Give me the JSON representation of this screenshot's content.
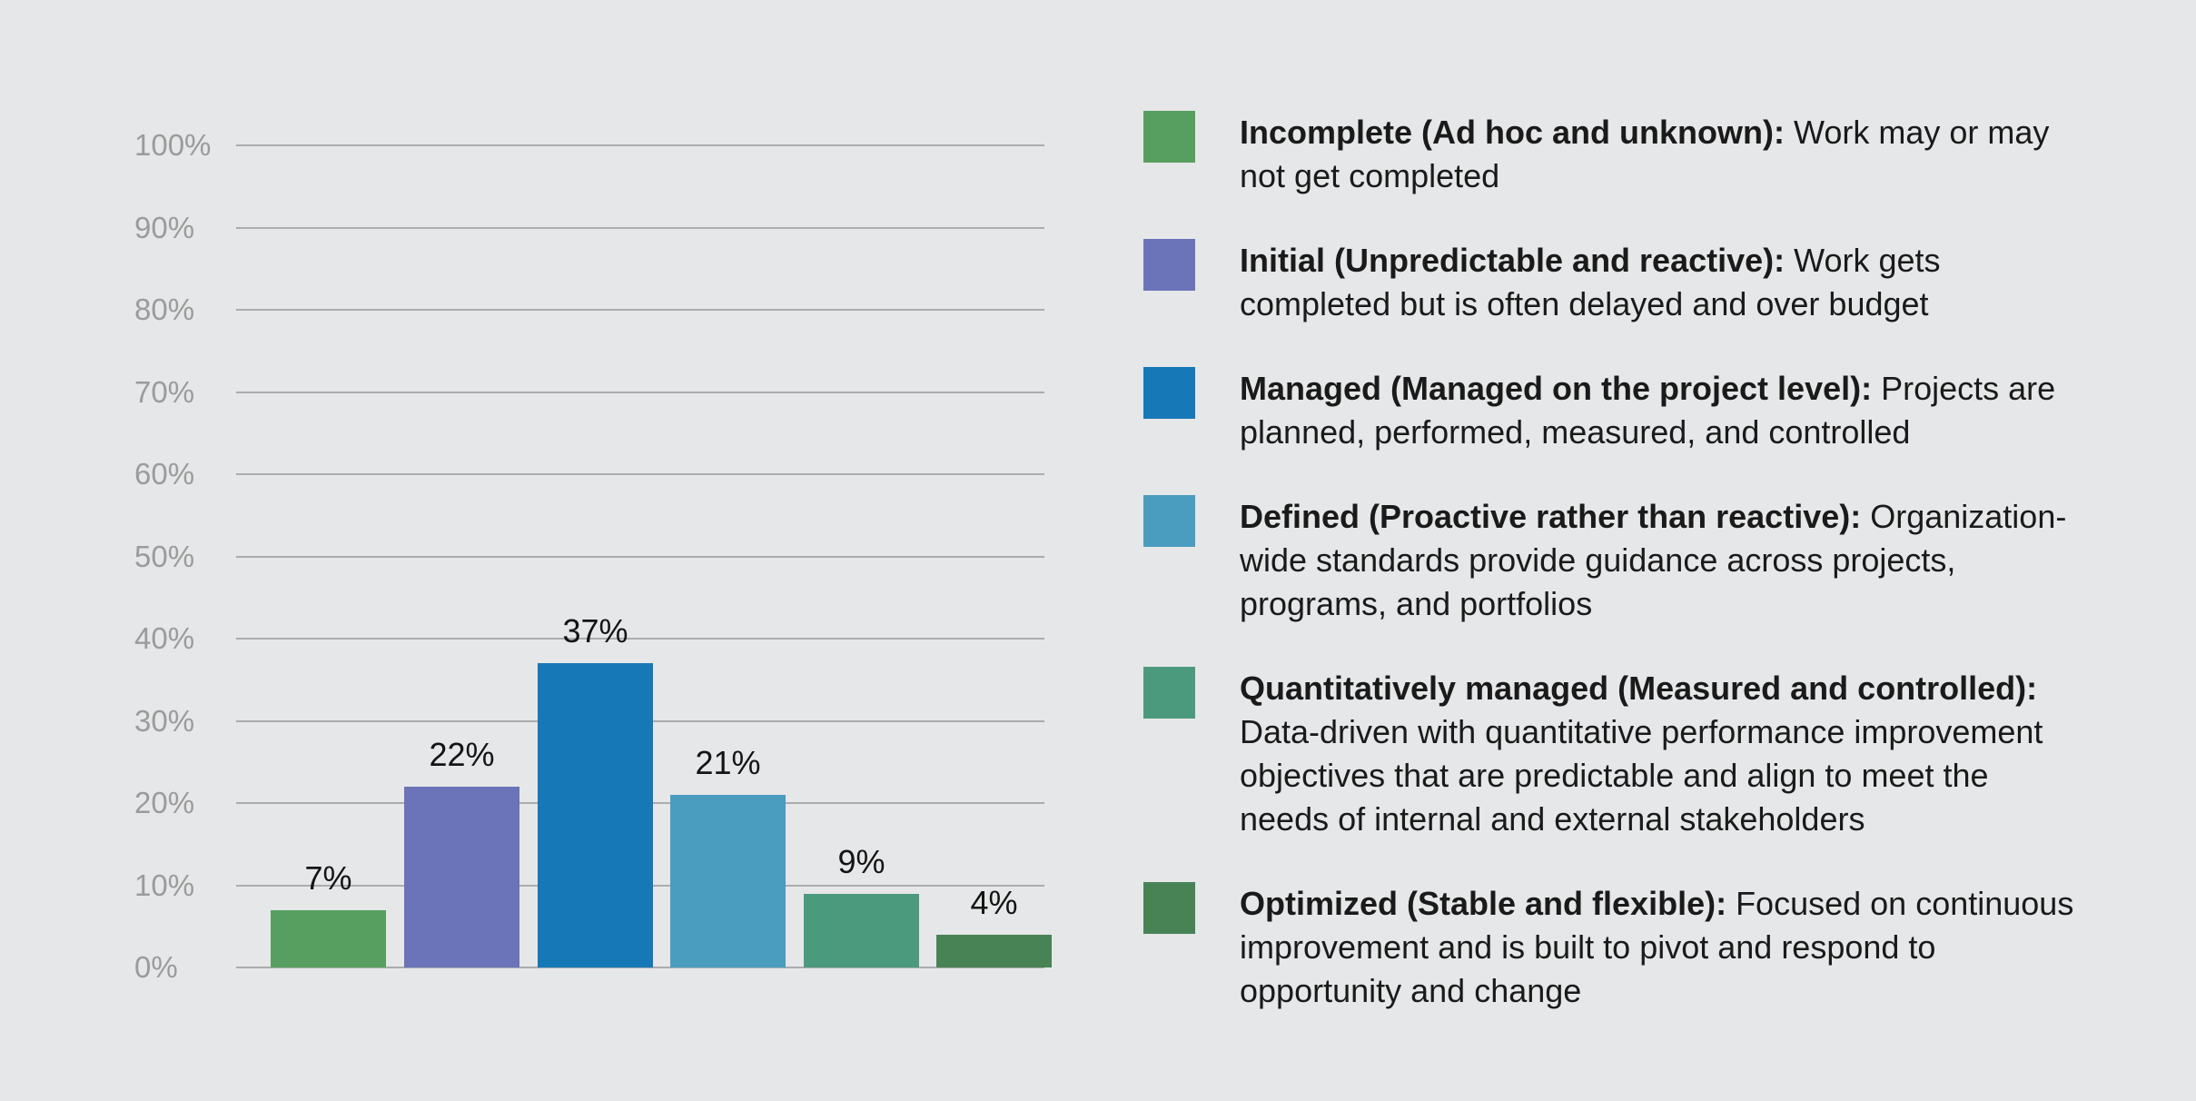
{
  "background_color": "#e6e7e8",
  "grid_color": "#aaacae",
  "tick_text_color": "#9b9b9b",
  "label_text_color": "#141414",
  "chart_data": {
    "type": "bar",
    "title": "",
    "xlabel": "",
    "ylabel": "",
    "ylim": [
      0,
      100
    ],
    "grid": true,
    "legend_position": "right",
    "y_tick_values": [
      0,
      10,
      20,
      30,
      40,
      50,
      60,
      70,
      80,
      90,
      100
    ],
    "y_tick_labels": [
      "0%",
      "10%",
      "20%",
      "30%",
      "40%",
      "50%",
      "60%",
      "70%",
      "80%",
      "90%",
      "100%"
    ],
    "categories": [
      "Incomplete",
      "Initial",
      "Managed",
      "Defined",
      "Quantitatively managed",
      "Optimized"
    ],
    "values": [
      7,
      22,
      37,
      21,
      9,
      4
    ],
    "value_labels": [
      "7%",
      "22%",
      "37%",
      "21%",
      "9%",
      "4%"
    ],
    "bar_colors": [
      "#579f60",
      "#6b74b8",
      "#1778b8",
      "#4a9dbf",
      "#4c9a7e",
      "#488356"
    ]
  },
  "legend": {
    "items": [
      {
        "color": "#579f60",
        "term": "Incomplete (Ad hoc and unknown):",
        "description": " Work may or may not get completed"
      },
      {
        "color": "#6b74b8",
        "term": "Initial (Unpredictable and reactive):",
        "description": " Work gets completed but is often delayed and over budget"
      },
      {
        "color": "#1778b8",
        "term": "Managed (Managed on the project level):",
        "description": " Projects are planned, performed, measured, and controlled"
      },
      {
        "color": "#4a9dbf",
        "term": "Defined (Proactive rather than reactive):",
        "description": " Organization-wide standards provide guidance across projects, programs, and portfolios"
      },
      {
        "color": "#4c9a7e",
        "term": "Quantitatively managed (Measured and controlled):",
        "description": " Data-driven with quantitative performance improvement objectives that are predictable and align to meet the needs of internal and external stakeholders"
      },
      {
        "color": "#488356",
        "term": "Optimized (Stable and flexible):",
        "description": " Focused on continuous improvement and is built to pivot and respond to opportunity and change"
      }
    ]
  }
}
